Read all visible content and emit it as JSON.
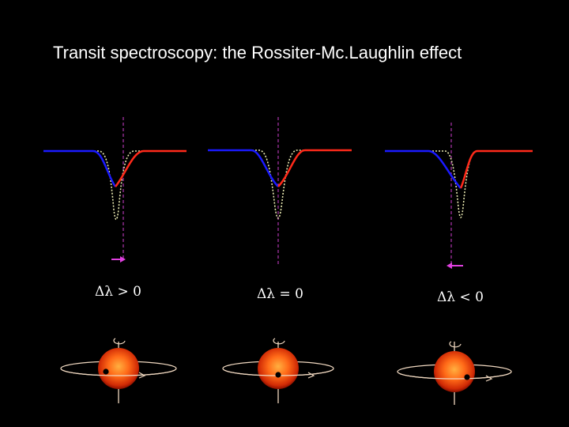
{
  "title": "Transit spectroscopy: the Rossiter-Mc.Laughlin effect",
  "colors": {
    "background": "#000000",
    "blue_wing": "#1a1aff",
    "red_wing": "#ff2a1a",
    "unperturbed_dotted": "#e8e8b0",
    "center_dashed": "#d040d0",
    "shift_arrow": "#e040e0",
    "orbit": "#f0d8c0",
    "star_core": "#ff7a22",
    "star_edge": "#b81800"
  },
  "panels": [
    {
      "shift_label": "Δλ > 0",
      "shift_direction": "redshift",
      "planet_position": "left of star center (approaching limb)"
    },
    {
      "shift_label": "Δλ = 0",
      "shift_direction": "none",
      "planet_position": "star center"
    },
    {
      "shift_label": "Δλ < 0",
      "shift_direction": "blueshift",
      "planet_position": "right of star center (receding limb)"
    }
  ],
  "icons": [
    "rotation-arrow-icon",
    "orbit-direction-arrow-icon",
    "planet-dot-icon",
    "star-icon"
  ]
}
